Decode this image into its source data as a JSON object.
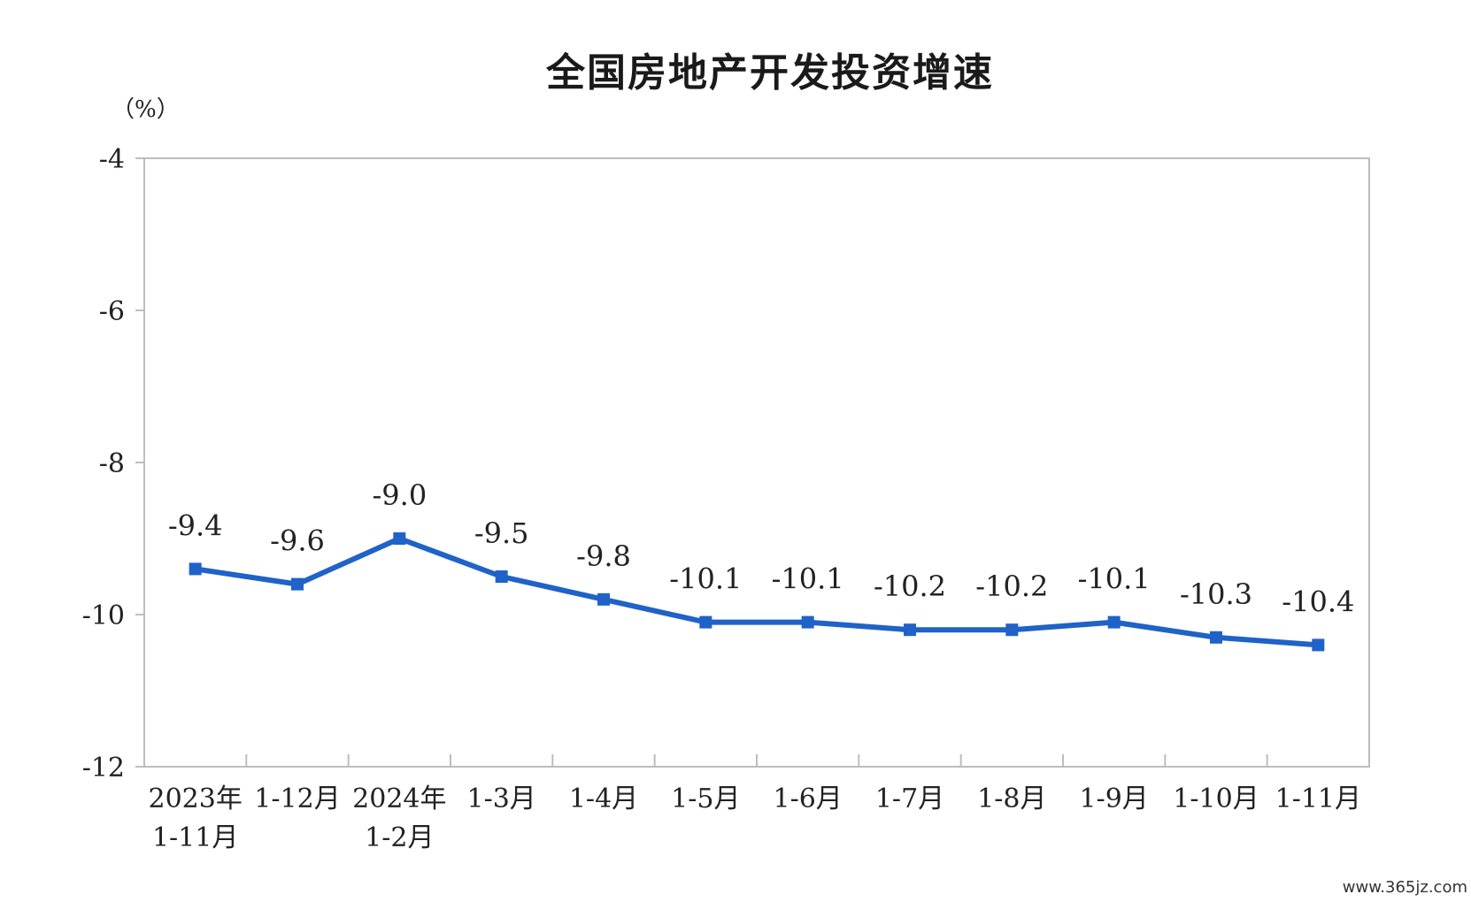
{
  "chart_data": {
    "type": "line",
    "title": "全国房地产开发投资增速",
    "ylabel": "（%）",
    "ylim": [
      -12,
      -4
    ],
    "yticks": [
      -4,
      -6,
      -8,
      -10,
      -12
    ],
    "grid": false,
    "legend": "none",
    "categories": [
      [
        "2023年",
        "1-11月"
      ],
      [
        "1-12月"
      ],
      [
        "2024年",
        "1-2月"
      ],
      [
        "1-3月"
      ],
      [
        "1-4月"
      ],
      [
        "1-5月"
      ],
      [
        "1-6月"
      ],
      [
        "1-7月"
      ],
      [
        "1-8月"
      ],
      [
        "1-9月"
      ],
      [
        "1-10月"
      ],
      [
        "1-11月"
      ]
    ],
    "values": [
      -9.4,
      -9.6,
      -9.0,
      -9.5,
      -9.8,
      -10.1,
      -10.1,
      -10.2,
      -10.2,
      -10.1,
      -10.3,
      -10.4
    ],
    "data_labels": [
      "-9.4",
      "-9.6",
      "-9.0",
      "-9.5",
      "-9.8",
      "-10.1",
      "-10.1",
      "-10.2",
      "-10.2",
      "-10.1",
      "-10.3",
      "-10.4"
    ],
    "line_color": "#1f62c8"
  },
  "watermark": "www.365jz.com"
}
